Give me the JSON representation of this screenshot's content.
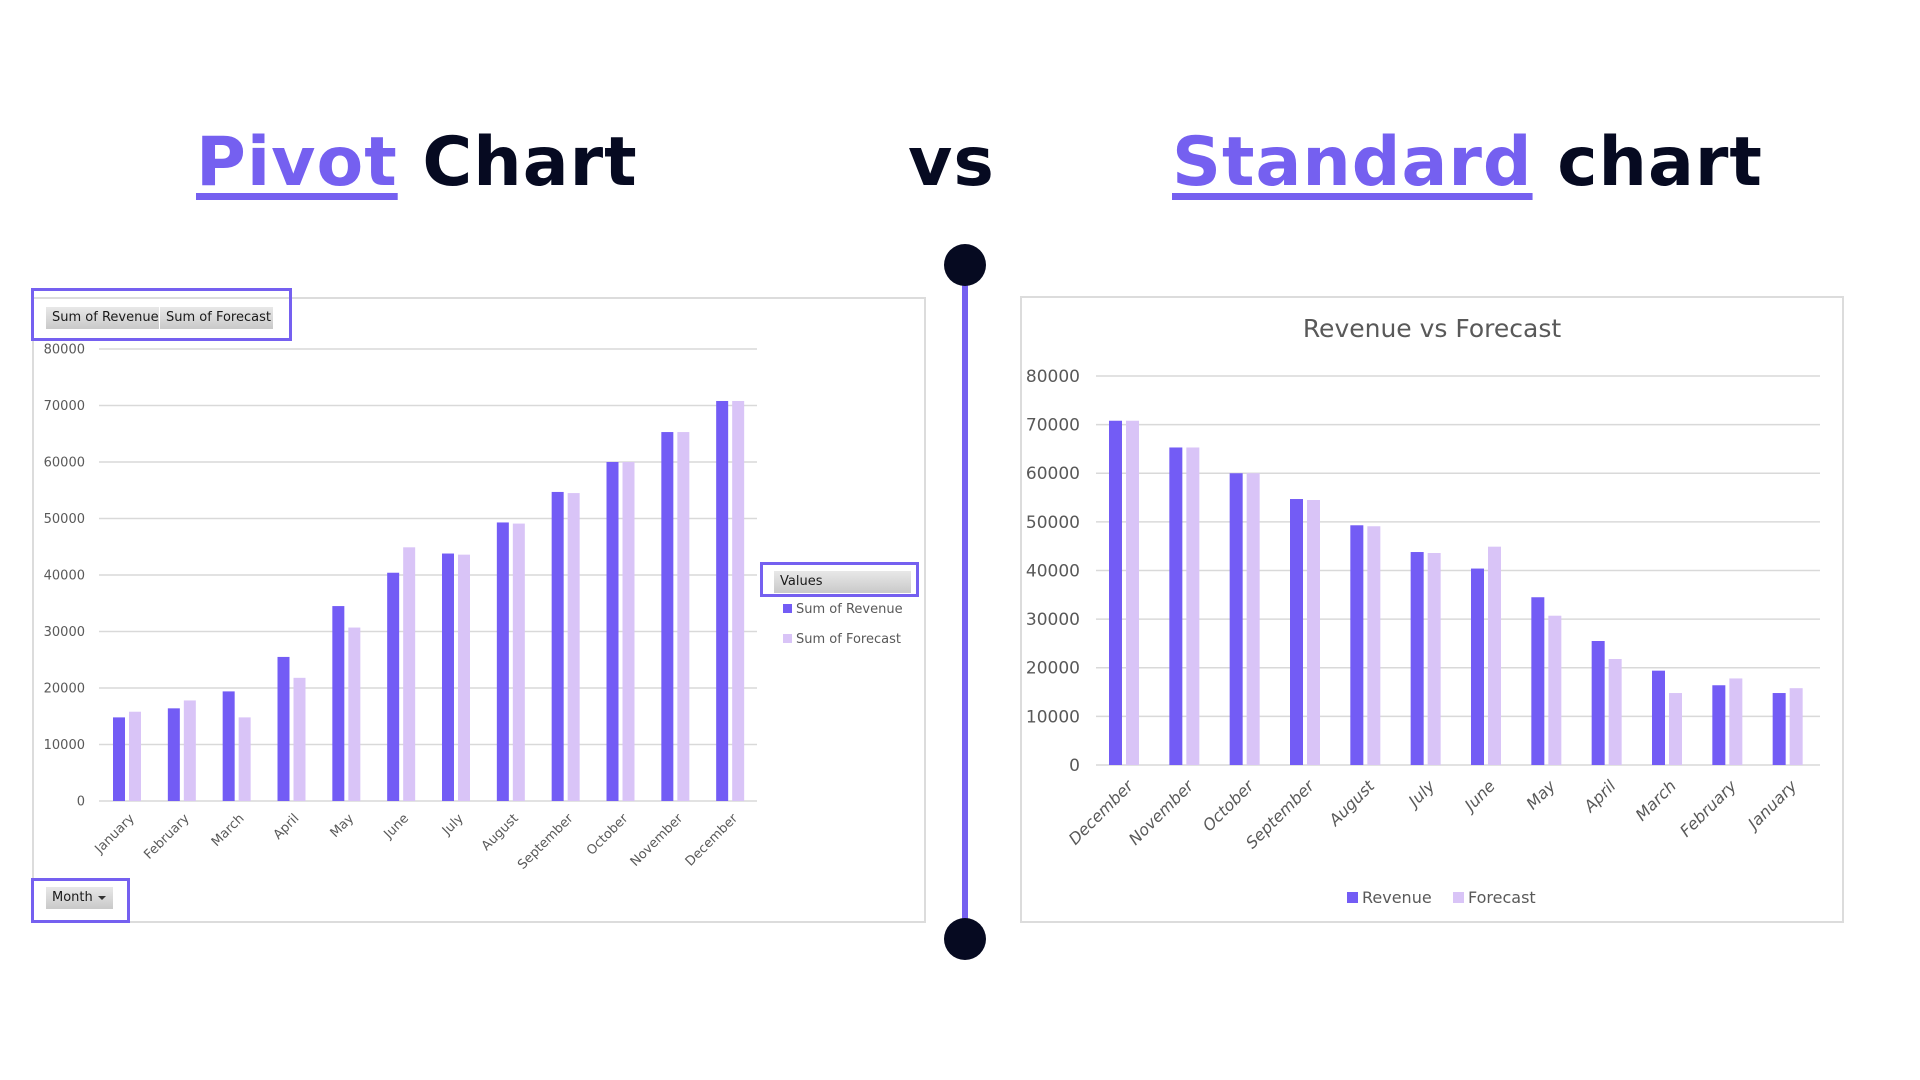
{
  "headings": {
    "pivot": {
      "accent": "Pivot",
      "rest": " Chart"
    },
    "vs": "vs",
    "standard": {
      "accent": "Standard",
      "rest": " chart"
    }
  },
  "colors": {
    "accent": "#7560f0",
    "dark": "#060a21",
    "revenue": "#735cf5",
    "forecast": "#d9c4f7",
    "gridline": "#d9d9d9",
    "axis_text": "#595959"
  },
  "pivot": {
    "field_buttons": [
      "Sum of Revenue",
      "Sum of Forecast"
    ],
    "axis_field_button": "Month",
    "legend": {
      "title": "Values",
      "items": [
        "Sum of Revenue",
        "Sum of Forecast"
      ]
    }
  },
  "standard": {
    "title": "Revenue vs Forecast",
    "legend": {
      "items": [
        "Revenue",
        "Forecast"
      ]
    }
  },
  "chart_data": [
    {
      "type": "bar",
      "title": "",
      "xlabel": "Month",
      "ylabel": "",
      "ylim": [
        0,
        80000
      ],
      "yticks": [
        0,
        10000,
        20000,
        30000,
        40000,
        50000,
        60000,
        70000,
        80000
      ],
      "grid": true,
      "legend_position": "right",
      "categories": [
        "January",
        "February",
        "March",
        "April",
        "May",
        "June",
        "July",
        "August",
        "September",
        "October",
        "November",
        "December"
      ],
      "series": [
        {
          "name": "Sum of Revenue",
          "values": [
            14800,
            16400,
            19400,
            25500,
            34500,
            40400,
            43800,
            49300,
            54700,
            60000,
            65300,
            70800
          ]
        },
        {
          "name": "Sum of Forecast",
          "values": [
            15800,
            17800,
            14800,
            21800,
            30700,
            44900,
            43600,
            49100,
            54500,
            60000,
            65300,
            70800
          ]
        }
      ]
    },
    {
      "type": "bar",
      "title": "Revenue vs Forecast",
      "xlabel": "",
      "ylabel": "",
      "ylim": [
        0,
        80000
      ],
      "yticks": [
        0,
        10000,
        20000,
        30000,
        40000,
        50000,
        60000,
        70000,
        80000
      ],
      "grid": true,
      "legend_position": "bottom",
      "categories": [
        "December",
        "November",
        "October",
        "September",
        "August",
        "July",
        "June",
        "May",
        "April",
        "March",
        "February",
        "January"
      ],
      "series": [
        {
          "name": "Revenue",
          "values": [
            70800,
            65300,
            60000,
            54700,
            49300,
            43800,
            40400,
            34500,
            25500,
            19400,
            16400,
            14800
          ]
        },
        {
          "name": "Forecast",
          "values": [
            70800,
            65300,
            60000,
            54500,
            49100,
            43600,
            44900,
            30700,
            21800,
            14800,
            17800,
            15800
          ]
        }
      ]
    }
  ]
}
